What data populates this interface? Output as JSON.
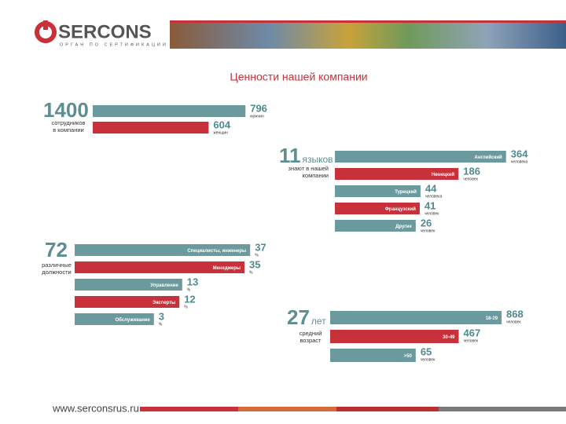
{
  "header": {
    "logo": "SERCONS",
    "tagline": "ОРГАН ПО СЕРТИФИКАЦИИ"
  },
  "title": "Ценности нашей компании",
  "footer": "www.serconsrus.ru",
  "chart_data": [
    {
      "type": "bar",
      "total": 1400,
      "total_caption": [
        "сотрудников",
        "в компании"
      ],
      "categories": [
        "мужчин",
        "женщин"
      ],
      "values": [
        796,
        604
      ],
      "colors": [
        "#6a9a9e",
        "#c8303a"
      ]
    },
    {
      "type": "bar",
      "total": 11,
      "total_unit": "языков",
      "total_caption": [
        "знают в нашей",
        "компании"
      ],
      "categories": [
        "Английский",
        "Немецкий",
        "Турецкий",
        "Французский",
        "Другие"
      ],
      "values": [
        364,
        186,
        44,
        41,
        26
      ],
      "value_units": [
        "человека",
        "человек",
        "человека",
        "человек",
        "человек"
      ],
      "colors": [
        "#6a9a9e",
        "#c8303a"
      ]
    },
    {
      "type": "bar",
      "total": 72,
      "total_caption": [
        "различные",
        "должности"
      ],
      "categories": [
        "Специалисты, инженеры",
        "Менеджеры",
        "Управление",
        "Эксперты",
        "Обслуживание"
      ],
      "values": [
        37,
        35,
        13,
        12,
        3
      ],
      "value_units": [
        "%",
        "%",
        "%",
        "%",
        "%"
      ],
      "colors": [
        "#6a9a9e",
        "#c8303a"
      ]
    },
    {
      "type": "bar",
      "total": 27,
      "total_unit": "лет",
      "total_caption": [
        "средний",
        "возраст"
      ],
      "categories": [
        "18-29",
        "30-49",
        ">50"
      ],
      "values": [
        868,
        467,
        65
      ],
      "value_units": [
        "человек",
        "человек",
        "человек"
      ],
      "colors": [
        "#6a9a9e",
        "#c8303a"
      ]
    }
  ]
}
